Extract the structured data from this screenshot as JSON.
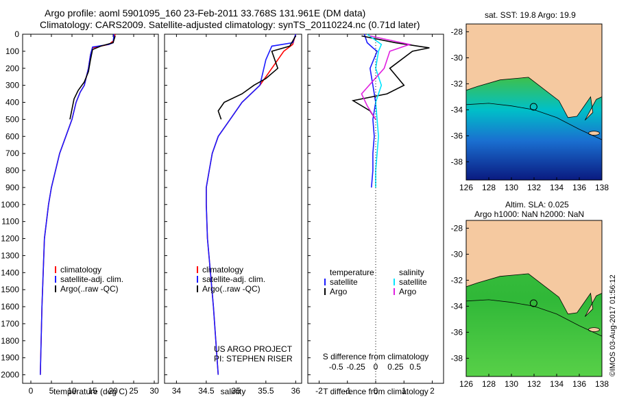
{
  "header": {
    "line1": "Argo profile: aoml 5901095_160 23-Feb-2011 33.768S 131.961E (DM data)",
    "line2": "Climatology: CARS2009. Satellite-adjusted climatology: synTS_20110224.nc (0.71d later)"
  },
  "colors": {
    "climatology": "#ff0000",
    "satellite": "#1a1aff",
    "argo": "#000000",
    "sal_sat": "#00e5ff",
    "sal_argo": "#e020e0",
    "land": "#f5c9a0"
  },
  "chart_data": [
    {
      "type": "line",
      "ylabel": "",
      "xlabel": "temperature (deg C)",
      "xlim": [
        -2,
        31
      ],
      "ylim": [
        0,
        2050
      ],
      "x_ticks": [
        0,
        5,
        10,
        15,
        20,
        25,
        30
      ],
      "y_ticks": [
        0,
        100,
        200,
        300,
        400,
        500,
        600,
        700,
        800,
        900,
        1000,
        1100,
        1200,
        1300,
        1400,
        1500,
        1600,
        1700,
        1800,
        1900,
        2000
      ],
      "legend": [
        "climatology",
        "satellite-adj. clim.",
        "Argo(..raw -QC)"
      ],
      "series": [
        {
          "name": "climatology",
          "color": "#ff0000",
          "points": [
            [
              20.5,
              0
            ],
            [
              20,
              40
            ],
            [
              19,
              60
            ],
            [
              15,
              80
            ],
            [
              14.5,
              120
            ],
            [
              14,
              200
            ],
            [
              13,
              300
            ],
            [
              12,
              340
            ],
            [
              11,
              400
            ],
            [
              10,
              500
            ],
            [
              8.5,
              600
            ],
            [
              7,
              700
            ],
            [
              6,
              800
            ],
            [
              5,
              900
            ],
            [
              4.3,
              1000
            ],
            [
              3.8,
              1100
            ],
            [
              3.3,
              1200
            ],
            [
              3,
              1400
            ],
            [
              2.7,
              1600
            ],
            [
              2.5,
              1800
            ],
            [
              2.3,
              2000
            ]
          ]
        },
        {
          "name": "satellite-adj. clim.",
          "color": "#1a1aff",
          "points": [
            [
              20.2,
              0
            ],
            [
              20,
              50
            ],
            [
              19,
              60
            ],
            [
              15,
              75
            ],
            [
              14.5,
              120
            ],
            [
              14,
              200
            ],
            [
              13,
              300
            ],
            [
              12,
              340
            ],
            [
              11,
              400
            ],
            [
              10,
              500
            ],
            [
              8.5,
              600
            ],
            [
              7,
              700
            ],
            [
              6,
              800
            ],
            [
              5,
              900
            ],
            [
              4.3,
              1000
            ],
            [
              3.8,
              1100
            ],
            [
              3.3,
              1200
            ],
            [
              3,
              1400
            ],
            [
              2.7,
              1600
            ],
            [
              2.5,
              1800
            ],
            [
              2.3,
              2000
            ]
          ]
        },
        {
          "name": "Argo(..raw -QC)",
          "color": "#000000",
          "points": [
            [
              20.5,
              10
            ],
            [
              20,
              50
            ],
            [
              17,
              70
            ],
            [
              15,
              90
            ],
            [
              14.5,
              150
            ],
            [
              14,
              220
            ],
            [
              13,
              280
            ],
            [
              11.5,
              330
            ],
            [
              10.5,
              380
            ],
            [
              10,
              440
            ],
            [
              9.5,
              500
            ]
          ]
        }
      ],
      "annotations": []
    },
    {
      "type": "line",
      "xlabel": "salinity",
      "xlim": [
        33.8,
        36.1
      ],
      "ylim": [
        0,
        2050
      ],
      "x_ticks": [
        34,
        34.5,
        35,
        35.5,
        36
      ],
      "legend": [
        "climatology",
        "satellite-adj. clim.",
        "Argo(..raw -QC)"
      ],
      "series": [
        {
          "name": "climatology",
          "color": "#ff0000",
          "points": [
            [
              36,
              0
            ],
            [
              35.95,
              60
            ],
            [
              35.8,
              100
            ],
            [
              35.6,
              200
            ],
            [
              35.4,
              300
            ],
            [
              35.1,
              400
            ],
            [
              34.9,
              500
            ],
            [
              34.7,
              600
            ],
            [
              34.6,
              700
            ],
            [
              34.55,
              800
            ],
            [
              34.5,
              900
            ],
            [
              34.5,
              1000
            ],
            [
              34.52,
              1200
            ],
            [
              34.57,
              1400
            ],
            [
              34.62,
              1600
            ],
            [
              34.66,
              1800
            ],
            [
              34.7,
              2000
            ]
          ]
        },
        {
          "name": "satellite-adj. clim.",
          "color": "#1a1aff",
          "points": [
            [
              36,
              0
            ],
            [
              35.95,
              50
            ],
            [
              35.6,
              70
            ],
            [
              35.5,
              150
            ],
            [
              35.4,
              300
            ],
            [
              35.1,
              400
            ],
            [
              34.9,
              500
            ],
            [
              34.7,
              600
            ],
            [
              34.6,
              700
            ],
            [
              34.55,
              800
            ],
            [
              34.5,
              900
            ],
            [
              34.5,
              1000
            ],
            [
              34.52,
              1200
            ],
            [
              34.57,
              1400
            ],
            [
              34.62,
              1600
            ],
            [
              34.66,
              1800
            ],
            [
              34.7,
              2000
            ]
          ]
        },
        {
          "name": "Argo(..raw -QC)",
          "color": "#000000",
          "points": [
            [
              36,
              10
            ],
            [
              35.9,
              70
            ],
            [
              35.6,
              100
            ],
            [
              35.7,
              200
            ],
            [
              35.5,
              260
            ],
            [
              35.3,
              300
            ],
            [
              35.1,
              350
            ],
            [
              34.8,
              400
            ],
            [
              34.7,
              450
            ],
            [
              34.75,
              500
            ]
          ]
        }
      ],
      "annotations": [
        "US ARGO PROJECT",
        "PI: STEPHEN RISER"
      ]
    },
    {
      "type": "line",
      "xlabel": "T difference from climatology",
      "xlabel2": "S difference from climatology",
      "xlim": [
        -2.4,
        2.4
      ],
      "ylim": [
        0,
        2050
      ],
      "x_ticks": [
        -2,
        -1,
        0,
        1,
        2
      ],
      "x_ticks_top": [
        "-0.5",
        "-0.25",
        "0",
        "0.25",
        "0.5"
      ],
      "legend_titles": [
        "temperature",
        "salinity"
      ],
      "legend": [
        "satellite",
        "Argo",
        "satellite",
        "Argo"
      ],
      "series": [
        {
          "name": "satellite",
          "color": "#1a1aff",
          "points": [
            [
              -0.4,
              0
            ],
            [
              -0.3,
              50
            ],
            [
              -0.1,
              80
            ],
            [
              0.05,
              100
            ],
            [
              -0.2,
              200
            ],
            [
              -0.1,
              300
            ],
            [
              0,
              400
            ],
            [
              -0.1,
              500
            ],
            [
              -0.05,
              600
            ],
            [
              -0.1,
              700
            ],
            [
              -0.1,
              800
            ],
            [
              -0.15,
              900
            ]
          ]
        },
        {
          "name": "Argo",
          "color": "#000000",
          "points": [
            [
              -0.5,
              10
            ],
            [
              0.7,
              50
            ],
            [
              1.9,
              80
            ],
            [
              1.3,
              100
            ],
            [
              0.5,
              200
            ],
            [
              1,
              300
            ],
            [
              0.4,
              350
            ],
            [
              -0.8,
              390
            ],
            [
              -0.2,
              450
            ],
            [
              0,
              500
            ]
          ]
        },
        {
          "name": "satellite",
          "color": "#00e5ff",
          "points": [
            [
              -0.3,
              0
            ],
            [
              0.2,
              60
            ],
            [
              0.1,
              100
            ],
            [
              0,
              200
            ],
            [
              0.2,
              300
            ],
            [
              0,
              400
            ],
            [
              0.1,
              600
            ],
            [
              0,
              800
            ],
            [
              0,
              900
            ]
          ]
        },
        {
          "name": "Argo",
          "color": "#e020e0",
          "points": [
            [
              -0.2,
              10
            ],
            [
              1.2,
              60
            ],
            [
              0.5,
              100
            ],
            [
              0.3,
              200
            ],
            [
              -0.5,
              350
            ],
            [
              -0.3,
              420
            ],
            [
              0,
              500
            ]
          ]
        }
      ],
      "annotations": []
    }
  ],
  "maps": [
    {
      "title": "sat. SST: 19.8  Argo: 19.9",
      "x_ticks": [
        126,
        128,
        130,
        132,
        134,
        136,
        138
      ],
      "y_ticks": [
        -28,
        -30,
        -32,
        -34,
        -36,
        -38
      ]
    },
    {
      "title": "Altim. SLA: 0.025",
      "title2": "Argo h1000: NaN h2000: NaN",
      "x_ticks": [
        126,
        128,
        130,
        132,
        134,
        136,
        138
      ],
      "y_ticks": [
        -28,
        -30,
        -32,
        -34,
        -36,
        -38
      ]
    }
  ],
  "credit": "©IMOS 03-Aug-2017 01:56:12"
}
